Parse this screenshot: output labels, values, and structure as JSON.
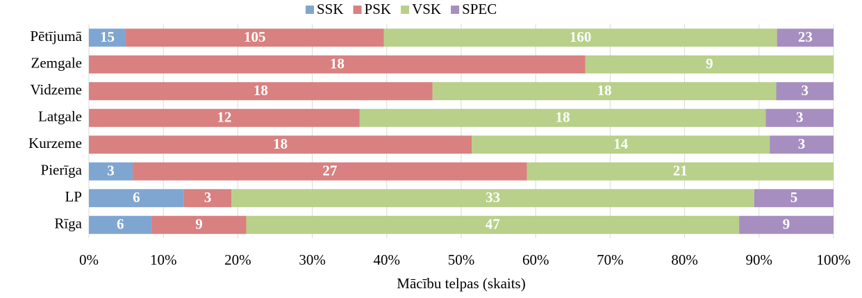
{
  "chart_data": {
    "type": "stacked-bar-100",
    "categories": [
      "Pētījumā",
      "Zemgale",
      "Vidzeme",
      "Latgale",
      "Kurzeme",
      "Pierīga",
      "LP",
      "Rīga"
    ],
    "series": [
      {
        "name": "SSK",
        "color": "#7fa6d0",
        "values": [
          15,
          null,
          null,
          null,
          null,
          3,
          6,
          6
        ]
      },
      {
        "name": "PSK",
        "color": "#d98080",
        "values": [
          105,
          18,
          18,
          12,
          18,
          27,
          3,
          9
        ]
      },
      {
        "name": "VSK",
        "color": "#b8d08a",
        "values": [
          160,
          9,
          18,
          18,
          14,
          21,
          33,
          47
        ]
      },
      {
        "name": "SPEC",
        "color": "#a78ec0",
        "values": [
          23,
          null,
          3,
          3,
          3,
          null,
          5,
          9
        ]
      }
    ],
    "xlabel": "Mācību telpas (skaits)",
    "xlim": [
      0,
      100
    ],
    "xticks": [
      {
        "value": 0,
        "label": "0%"
      },
      {
        "value": 10,
        "label": "10%"
      },
      {
        "value": 20,
        "label": "20%"
      },
      {
        "value": 30,
        "label": "30%"
      },
      {
        "value": 40,
        "label": "40%"
      },
      {
        "value": 50,
        "label": "50%"
      },
      {
        "value": 60,
        "label": "60%"
      },
      {
        "value": 70,
        "label": "70%"
      },
      {
        "value": 80,
        "label": "80%"
      },
      {
        "value": 90,
        "label": "90%"
      },
      {
        "value": 100,
        "label": "100%"
      }
    ],
    "grid": true,
    "legend": "top"
  }
}
